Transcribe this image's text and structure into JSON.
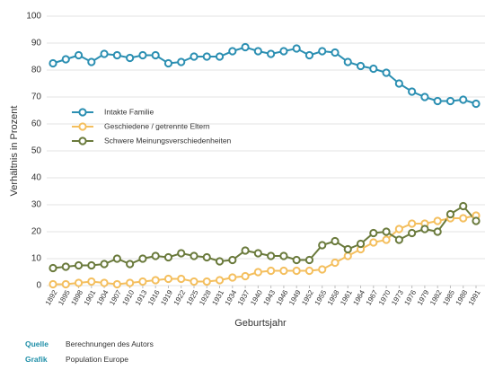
{
  "chart_data": {
    "type": "line",
    "y_label": "Verhältnis in Prozent",
    "x_label": "Geburtsjahr",
    "x": [
      1892,
      1895,
      1898,
      1901,
      1904,
      1907,
      1910,
      1913,
      1916,
      1919,
      1922,
      1925,
      1928,
      1931,
      1934,
      1937,
      1940,
      1943,
      1946,
      1949,
      1952,
      1955,
      1958,
      1961,
      1964,
      1967,
      1970,
      1973,
      1976,
      1979,
      1982,
      1985,
      1988,
      1991
    ],
    "xlim": [
      1892,
      1991
    ],
    "xticks": [
      1892,
      1895,
      1898,
      1901,
      1904,
      1907,
      1910,
      1913,
      1916,
      1919,
      1922,
      1925,
      1928,
      1931,
      1934,
      1937,
      1940,
      1943,
      1946,
      1949,
      1952,
      1955,
      1958,
      1961,
      1964,
      1967,
      1970,
      1973,
      1976,
      1979,
      1982,
      1985,
      1988,
      1991
    ],
    "ylim": [
      0,
      100
    ],
    "yticks": [
      0,
      10,
      20,
      30,
      40,
      50,
      60,
      70,
      80,
      90,
      100
    ],
    "grid": true,
    "series": [
      {
        "name": "Intakte Familie",
        "color": "#2b8fb2",
        "values": [
          82.5,
          84,
          85.5,
          83,
          86,
          85.5,
          84.5,
          85.5,
          85.5,
          82.5,
          83,
          85,
          85,
          85,
          87,
          88.5,
          87,
          86,
          87,
          88,
          85.5,
          87,
          86.5,
          83,
          81.5,
          80.5,
          79,
          75,
          72,
          70,
          68.5,
          68.5,
          69,
          67.5
        ]
      },
      {
        "name": "Geschiedene / getrennte Eltern",
        "color": "#f4bf5e",
        "values": [
          0.5,
          0.5,
          1,
          1.5,
          1,
          0.5,
          1,
          1.5,
          2,
          2.5,
          2.5,
          1.5,
          1.5,
          2,
          3,
          3.5,
          5,
          5.5,
          5.5,
          5.5,
          5.5,
          6,
          8.5,
          11,
          13.5,
          16,
          17,
          21,
          23,
          23,
          24,
          25,
          25,
          26
        ]
      },
      {
        "name": "Schwere Meinungsverschiedenheiten",
        "color": "#6a7a3c",
        "values": [
          6.5,
          7,
          7.5,
          7.5,
          8,
          10,
          8,
          10,
          11,
          10.5,
          12,
          11,
          10.5,
          9,
          9.5,
          13,
          12,
          11,
          11,
          9.5,
          9.5,
          15,
          16.5,
          13.5,
          15.5,
          19.5,
          20,
          17,
          19.5,
          21,
          20,
          26.5,
          29.5,
          24
        ]
      }
    ]
  },
  "footer": [
    {
      "label": "Quelle",
      "text": "Berechnungen des Autors"
    },
    {
      "label": "Grafik",
      "text": "Population Europe"
    }
  ]
}
